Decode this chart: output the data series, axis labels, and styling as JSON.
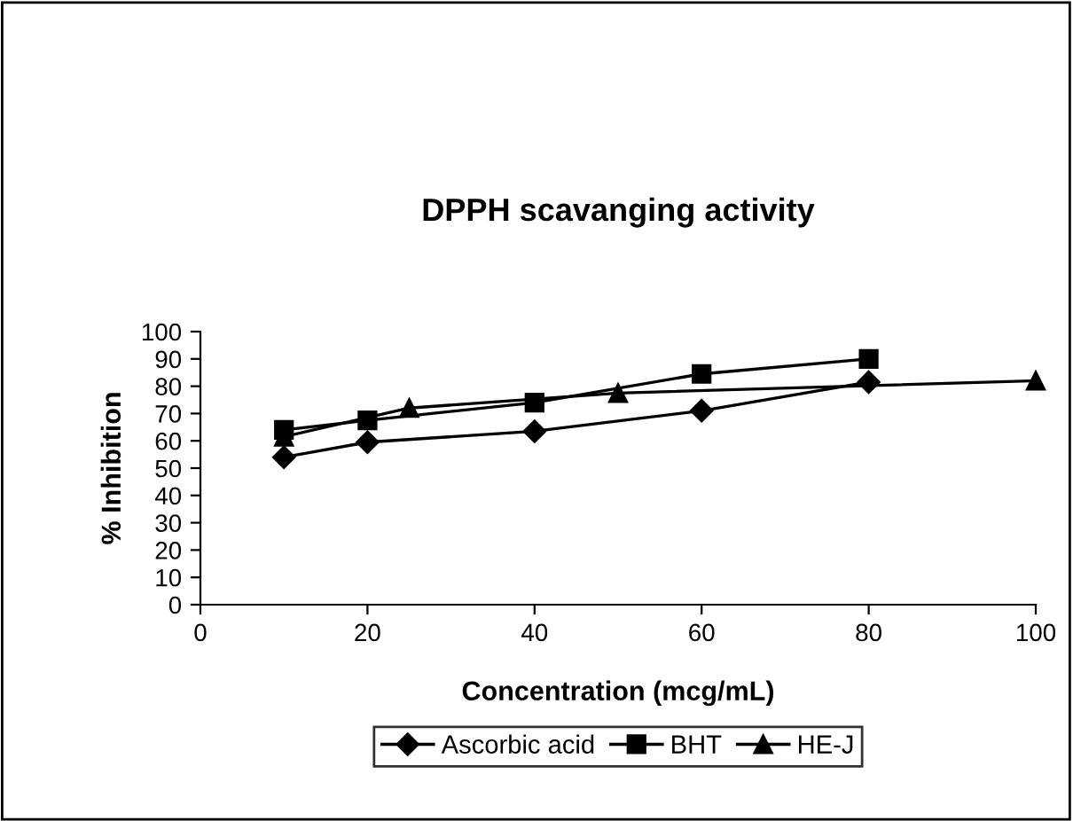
{
  "chart_data": {
    "type": "line",
    "title": "DPPH scavanging activity",
    "xlabel": "Concentration (mcg/mL)",
    "ylabel": "% Inhibition",
    "series": [
      {
        "name": "Ascorbic acid",
        "color": "#000000",
        "marker": "diamond",
        "x": [
          10,
          20,
          40,
          60,
          80
        ],
        "values": [
          54,
          59.5,
          63.5,
          71,
          81.5
        ]
      },
      {
        "name": "BHT",
        "color": "#000000",
        "marker": "square",
        "x": [
          10,
          20,
          40,
          60,
          80
        ],
        "values": [
          64,
          67.5,
          74,
          84.5,
          90
        ]
      },
      {
        "name": "HE-J",
        "color": "#000000",
        "marker": "triangle",
        "x": [
          10,
          25,
          50,
          100
        ],
        "values": [
          61.5,
          72,
          77.5,
          82
        ]
      }
    ],
    "xlim": [
      0,
      100
    ],
    "xticks": [
      0,
      20,
      40,
      60,
      80,
      100
    ],
    "ylim": [
      0,
      100
    ],
    "yticks": [
      0,
      10,
      20,
      30,
      40,
      50,
      60,
      70,
      80,
      90,
      100
    ],
    "grid": false,
    "legend": "bottom",
    "line_style": "solid"
  }
}
